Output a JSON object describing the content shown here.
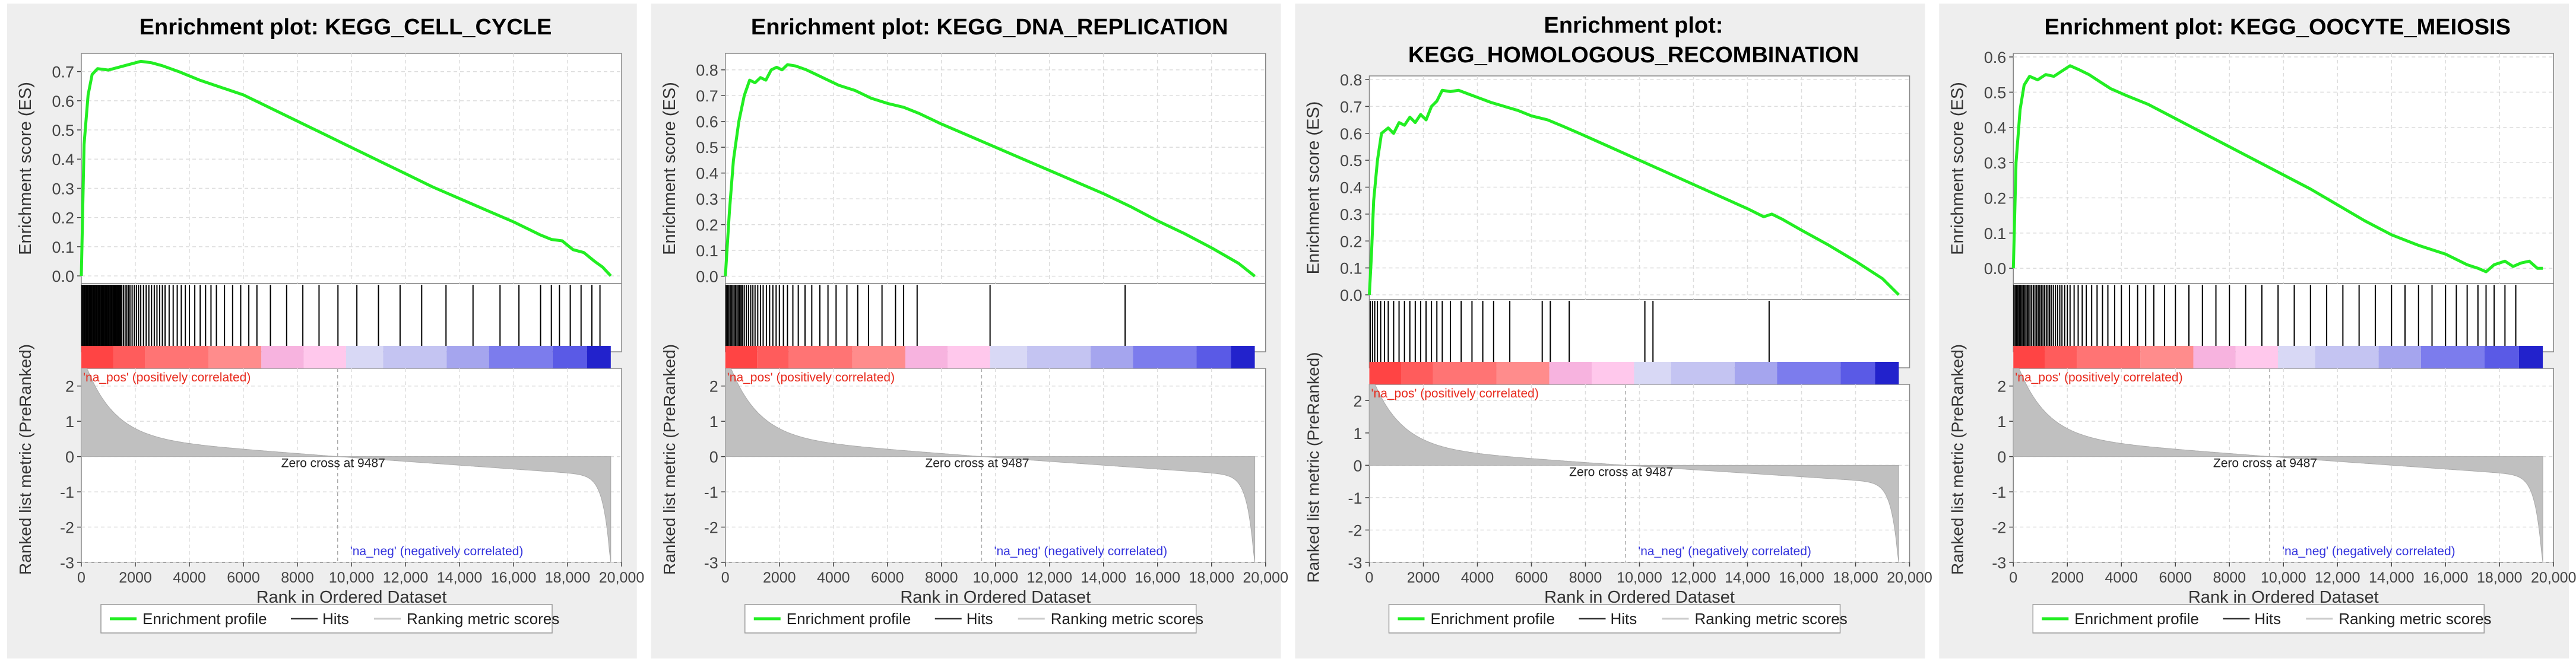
{
  "colors": {
    "profile": "#22ee22",
    "hits": "#000000",
    "metric_fill": "#c0c0c0",
    "pos_label": "#e8291c",
    "neg_label": "#3333dd",
    "grid": "#dddddd",
    "panel_bg": "#eeeeee",
    "ribbon": [
      "#ff4444",
      "#ff5c5c",
      "#ff7474",
      "#ff8c8c",
      "#f7b3df",
      "#ffc8ec",
      "#d8d8f5",
      "#c4c4f2",
      "#a5a5ee",
      "#7c7ced",
      "#5a5ae6",
      "#2222cc"
    ]
  },
  "chart_data": [
    {
      "type": "line",
      "title": "Enrichment plot: KEGG_CELL_CYCLE",
      "title_lines": [
        "Enrichment plot: KEGG_CELL_CYCLE"
      ],
      "ylabel": "Enrichment score (ES)",
      "ylim": [
        -0.01,
        0.75
      ],
      "yticks": [
        0.0,
        0.1,
        0.2,
        0.3,
        0.4,
        0.5,
        0.6,
        0.7
      ],
      "es_points": [
        [
          0,
          0
        ],
        [
          100,
          0.45
        ],
        [
          250,
          0.62
        ],
        [
          400,
          0.69
        ],
        [
          600,
          0.71
        ],
        [
          1000,
          0.705
        ],
        [
          1400,
          0.715
        ],
        [
          1800,
          0.725
        ],
        [
          2200,
          0.735
        ],
        [
          2600,
          0.73
        ],
        [
          3000,
          0.72
        ],
        [
          3600,
          0.7
        ],
        [
          4400,
          0.67
        ],
        [
          5200,
          0.645
        ],
        [
          6000,
          0.62
        ],
        [
          7000,
          0.575
        ],
        [
          8000,
          0.53
        ],
        [
          9000,
          0.485
        ],
        [
          10000,
          0.44
        ],
        [
          11000,
          0.395
        ],
        [
          12000,
          0.35
        ],
        [
          13000,
          0.305
        ],
        [
          14000,
          0.265
        ],
        [
          15000,
          0.225
        ],
        [
          16000,
          0.185
        ],
        [
          17000,
          0.14
        ],
        [
          17400,
          0.125
        ],
        [
          17800,
          0.12
        ],
        [
          18200,
          0.09
        ],
        [
          18600,
          0.08
        ],
        [
          19000,
          0.05
        ],
        [
          19300,
          0.03
        ],
        [
          19600,
          0.0
        ]
      ],
      "hit_ranks": [
        20,
        60,
        100,
        140,
        180,
        220,
        260,
        300,
        340,
        380,
        420,
        460,
        500,
        540,
        580,
        620,
        660,
        700,
        740,
        780,
        820,
        860,
        900,
        940,
        980,
        1020,
        1060,
        1100,
        1140,
        1180,
        1220,
        1260,
        1300,
        1340,
        1380,
        1420,
        1460,
        1500,
        1560,
        1620,
        1680,
        1740,
        1800,
        1880,
        1960,
        2040,
        2120,
        2200,
        2300,
        2400,
        2500,
        2600,
        2700,
        2800,
        2900,
        3000,
        3100,
        3250,
        3400,
        3550,
        3700,
        3850,
        4000,
        4200,
        4400,
        4600,
        4800,
        5000,
        5300,
        5600,
        5900,
        6200,
        6500,
        7000,
        7600,
        8200,
        8800,
        9500,
        10200,
        11000,
        11800,
        12600,
        13500,
        14500,
        15500,
        16200,
        17000,
        17400,
        17700,
        18100,
        18500,
        18900,
        19200
      ],
      "zero_cross_label": "Zero cross at 9487",
      "zero_cross": 9487,
      "ranked_ylabel": "Ranked list metric (PreRanked)",
      "ranked_ylim": [
        -3,
        2.5
      ],
      "ranked_yticks": [
        -3,
        -2,
        -1,
        0,
        1,
        2
      ],
      "pos_label": "'na_pos' (positively correlated)",
      "neg_label": "'na_neg' (negatively correlated)",
      "xlabel": "Rank in Ordered Dataset",
      "xlim": [
        0,
        20000
      ],
      "xticks": [
        0,
        2000,
        4000,
        6000,
        8000,
        10000,
        12000,
        14000,
        16000,
        18000,
        20000
      ],
      "xtick_labels": [
        "0",
        "2000",
        "4000",
        "6000",
        "8000",
        "10,000",
        "12,000",
        "14,000",
        "16,000",
        "18,000",
        "20,000"
      ],
      "n_genes": 19600,
      "legend": [
        "Enrichment profile",
        "Hits",
        "Ranking metric scores"
      ]
    },
    {
      "type": "line",
      "title": "Enrichment plot: KEGG_DNA_REPLICATION",
      "title_lines": [
        "Enrichment plot: KEGG_DNA_REPLICATION"
      ],
      "ylabel": "Enrichment score (ES)",
      "ylim": [
        -0.01,
        0.85
      ],
      "yticks": [
        0.0,
        0.1,
        0.2,
        0.3,
        0.4,
        0.5,
        0.6,
        0.7,
        0.8
      ],
      "es_points": [
        [
          0,
          0
        ],
        [
          150,
          0.25
        ],
        [
          300,
          0.45
        ],
        [
          500,
          0.6
        ],
        [
          700,
          0.7
        ],
        [
          900,
          0.76
        ],
        [
          1100,
          0.75
        ],
        [
          1300,
          0.77
        ],
        [
          1500,
          0.76
        ],
        [
          1700,
          0.8
        ],
        [
          1900,
          0.81
        ],
        [
          2100,
          0.8
        ],
        [
          2300,
          0.82
        ],
        [
          2600,
          0.815
        ],
        [
          3000,
          0.8
        ],
        [
          3400,
          0.78
        ],
        [
          3800,
          0.76
        ],
        [
          4200,
          0.74
        ],
        [
          4800,
          0.72
        ],
        [
          5400,
          0.69
        ],
        [
          6000,
          0.67
        ],
        [
          6600,
          0.655
        ],
        [
          7200,
          0.63
        ],
        [
          8000,
          0.59
        ],
        [
          9000,
          0.545
        ],
        [
          10000,
          0.5
        ],
        [
          11000,
          0.455
        ],
        [
          12000,
          0.41
        ],
        [
          13000,
          0.365
        ],
        [
          14000,
          0.32
        ],
        [
          15000,
          0.27
        ],
        [
          16000,
          0.215
        ],
        [
          17000,
          0.165
        ],
        [
          18000,
          0.11
        ],
        [
          19000,
          0.05
        ],
        [
          19600,
          0.0
        ]
      ],
      "hit_ranks": [
        30,
        80,
        130,
        180,
        230,
        280,
        330,
        380,
        430,
        480,
        530,
        580,
        630,
        700,
        780,
        860,
        940,
        1020,
        1100,
        1200,
        1300,
        1400,
        1520,
        1640,
        1760,
        1880,
        2000,
        2150,
        2300,
        2500,
        2700,
        2950,
        3200,
        3500,
        3800,
        4100,
        4500,
        4900,
        5300,
        5800,
        6300,
        6600,
        7100,
        9800,
        14800
      ],
      "zero_cross_label": "Zero cross at 9487",
      "zero_cross": 9487,
      "ranked_ylabel": "Ranked list metric (PreRanked)",
      "ranked_ylim": [
        -3,
        2.5
      ],
      "ranked_yticks": [
        -3,
        -2,
        -1,
        0,
        1,
        2
      ],
      "pos_label": "'na_pos' (positively correlated)",
      "neg_label": "'na_neg' (negatively correlated)",
      "xlabel": "Rank in Ordered Dataset",
      "xlim": [
        0,
        20000
      ],
      "xticks": [
        0,
        2000,
        4000,
        6000,
        8000,
        10000,
        12000,
        14000,
        16000,
        18000,
        20000
      ],
      "xtick_labels": [
        "0",
        "2000",
        "4000",
        "6000",
        "8000",
        "10,000",
        "12,000",
        "14,000",
        "16,000",
        "18,000",
        "20,000"
      ],
      "n_genes": 19600,
      "legend": [
        "Enrichment profile",
        "Hits",
        "Ranking metric scores"
      ]
    },
    {
      "type": "line",
      "title": "Enrichment plot: KEGG_HOMOLOGOUS_RECOMBINATION",
      "title_lines": [
        "Enrichment plot:",
        "KEGG_HOMOLOGOUS_RECOMBINATION"
      ],
      "ylabel": "Enrichment score (ES)",
      "ylim": [
        0.0,
        0.8
      ],
      "yticks": [
        0.0,
        0.1,
        0.2,
        0.3,
        0.4,
        0.5,
        0.6,
        0.7,
        0.8
      ],
      "es_points": [
        [
          0,
          0
        ],
        [
          80,
          0.15
        ],
        [
          160,
          0.35
        ],
        [
          300,
          0.5
        ],
        [
          450,
          0.6
        ],
        [
          700,
          0.62
        ],
        [
          900,
          0.6
        ],
        [
          1100,
          0.64
        ],
        [
          1300,
          0.63
        ],
        [
          1500,
          0.66
        ],
        [
          1700,
          0.64
        ],
        [
          1900,
          0.67
        ],
        [
          2100,
          0.65
        ],
        [
          2300,
          0.7
        ],
        [
          2500,
          0.72
        ],
        [
          2700,
          0.76
        ],
        [
          3000,
          0.755
        ],
        [
          3300,
          0.76
        ],
        [
          3700,
          0.745
        ],
        [
          4100,
          0.73
        ],
        [
          4500,
          0.715
        ],
        [
          5000,
          0.7
        ],
        [
          5500,
          0.685
        ],
        [
          6000,
          0.665
        ],
        [
          6600,
          0.65
        ],
        [
          7200,
          0.625
        ],
        [
          8000,
          0.59
        ],
        [
          9000,
          0.545
        ],
        [
          10000,
          0.5
        ],
        [
          11000,
          0.455
        ],
        [
          12000,
          0.41
        ],
        [
          13000,
          0.365
        ],
        [
          14000,
          0.32
        ],
        [
          14600,
          0.29
        ],
        [
          14900,
          0.3
        ],
        [
          15300,
          0.28
        ],
        [
          16000,
          0.24
        ],
        [
          17000,
          0.185
        ],
        [
          18000,
          0.125
        ],
        [
          19000,
          0.06
        ],
        [
          19600,
          0.0
        ]
      ],
      "hit_ranks": [
        40,
        120,
        200,
        300,
        420,
        560,
        700,
        900,
        1100,
        1300,
        1500,
        1700,
        1900,
        2100,
        2300,
        2500,
        2700,
        3000,
        3400,
        3800,
        4200,
        4600,
        5200,
        6400,
        6700,
        7400,
        10200,
        10500,
        14800
      ],
      "zero_cross_label": "Zero cross at 9487",
      "zero_cross": 9487,
      "ranked_ylabel": "Ranked list metric (PreRanked)",
      "ranked_ylim": [
        -3,
        2.5
      ],
      "ranked_yticks": [
        -3,
        -2,
        -1,
        0,
        1,
        2
      ],
      "pos_label": "'na_pos' (positively correlated)",
      "neg_label": "'na_neg' (negatively correlated)",
      "xlabel": "Rank in Ordered Dataset",
      "xlim": [
        0,
        20000
      ],
      "xticks": [
        0,
        2000,
        4000,
        6000,
        8000,
        10000,
        12000,
        14000,
        16000,
        18000,
        20000
      ],
      "xtick_labels": [
        "0",
        "2000",
        "4000",
        "6000",
        "8000",
        "10,000",
        "12,000",
        "14,000",
        "16,000",
        "18,000",
        "20,000"
      ],
      "n_genes": 19600,
      "legend": [
        "Enrichment profile",
        "Hits",
        "Ranking metric scores"
      ]
    },
    {
      "type": "line",
      "title": "Enrichment plot: KEGG_OOCYTE_MEIOSIS",
      "title_lines": [
        "Enrichment plot: KEGG_OOCYTE_MEIOSIS"
      ],
      "ylabel": "Enrichment score (ES)",
      "ylim": [
        -0.03,
        0.6
      ],
      "yticks": [
        0.0,
        0.1,
        0.2,
        0.3,
        0.4,
        0.5,
        0.6
      ],
      "es_points": [
        [
          0,
          0
        ],
        [
          100,
          0.3
        ],
        [
          250,
          0.45
        ],
        [
          400,
          0.52
        ],
        [
          600,
          0.545
        ],
        [
          900,
          0.535
        ],
        [
          1200,
          0.55
        ],
        [
          1500,
          0.545
        ],
        [
          1800,
          0.56
        ],
        [
          2100,
          0.575
        ],
        [
          2400,
          0.565
        ],
        [
          2800,
          0.55
        ],
        [
          3200,
          0.53
        ],
        [
          3600,
          0.51
        ],
        [
          4200,
          0.49
        ],
        [
          5000,
          0.465
        ],
        [
          6000,
          0.425
        ],
        [
          7000,
          0.385
        ],
        [
          8000,
          0.345
        ],
        [
          9000,
          0.305
        ],
        [
          10000,
          0.265
        ],
        [
          11000,
          0.225
        ],
        [
          12000,
          0.18
        ],
        [
          13000,
          0.135
        ],
        [
          14000,
          0.095
        ],
        [
          15000,
          0.065
        ],
        [
          16000,
          0.04
        ],
        [
          16800,
          0.01
        ],
        [
          17200,
          0.0
        ],
        [
          17500,
          -0.01
        ],
        [
          17800,
          0.01
        ],
        [
          18200,
          0.02
        ],
        [
          18500,
          0.005
        ],
        [
          18800,
          0.015
        ],
        [
          19100,
          0.02
        ],
        [
          19400,
          0.0
        ],
        [
          19600,
          0.0
        ]
      ],
      "hit_ranks": [
        20,
        70,
        120,
        170,
        220,
        270,
        320,
        370,
        420,
        470,
        520,
        570,
        620,
        680,
        740,
        800,
        860,
        920,
        980,
        1040,
        1100,
        1160,
        1220,
        1280,
        1340,
        1400,
        1480,
        1560,
        1640,
        1720,
        1800,
        1900,
        2000,
        2100,
        2250,
        2400,
        2550,
        2700,
        2900,
        3100,
        3300,
        3500,
        3750,
        4000,
        4300,
        4600,
        4900,
        5200,
        5600,
        6000,
        6500,
        7000,
        7500,
        8000,
        8600,
        9200,
        9800,
        10400,
        11000,
        11600,
        12200,
        12800,
        13400,
        14000,
        14500,
        15000,
        15500,
        16000,
        16400,
        16800,
        17200,
        17500,
        17800,
        18200,
        18600
      ],
      "zero_cross_label": "Zero cross at 9487",
      "zero_cross": 9487,
      "ranked_ylabel": "Ranked list metric (PreRanked)",
      "ranked_ylim": [
        -3,
        2.5
      ],
      "ranked_yticks": [
        -3,
        -2,
        -1,
        0,
        1,
        2
      ],
      "pos_label": "'na_pos' (positively correlated)",
      "neg_label": "'na_neg' (negatively correlated)",
      "xlabel": "Rank in Ordered Dataset",
      "xlim": [
        0,
        20000
      ],
      "xticks": [
        0,
        2000,
        4000,
        6000,
        8000,
        10000,
        12000,
        14000,
        16000,
        18000,
        20000
      ],
      "xtick_labels": [
        "0",
        "2000",
        "4000",
        "6000",
        "8000",
        "10,000",
        "12,000",
        "14,000",
        "16,000",
        "18,000",
        "20,000"
      ],
      "n_genes": 19600,
      "legend": [
        "Enrichment profile",
        "Hits",
        "Ranking metric scores"
      ]
    }
  ]
}
